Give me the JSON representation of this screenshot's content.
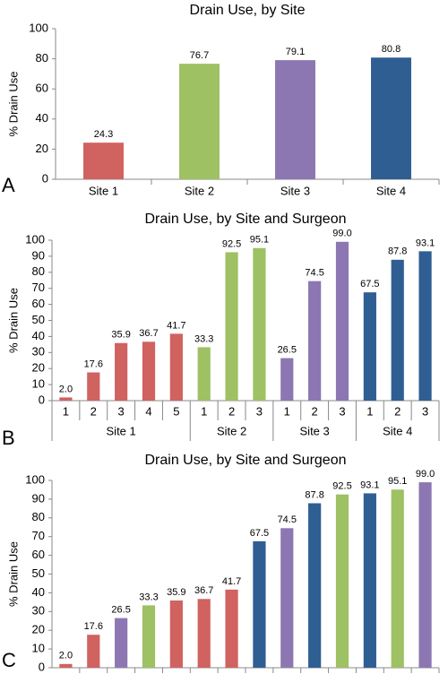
{
  "chart_data": [
    {
      "type": "bar",
      "panel_label": "A",
      "title": "Drain Use, by Site",
      "ylabel": "% Drain Use",
      "categories": [
        "Site 1",
        "Site 2",
        "Site 3",
        "Site 4"
      ],
      "values": [
        24.3,
        76.7,
        79.1,
        80.8
      ],
      "value_labels": [
        "24.3",
        "76.7",
        "79.1",
        "80.8"
      ],
      "colors": [
        "#d0625f",
        "#9dc163",
        "#8c77b3",
        "#2f5e93"
      ],
      "ylim": [
        0,
        100
      ],
      "yticks": [
        0,
        20,
        40,
        60,
        80,
        100
      ]
    },
    {
      "type": "bar",
      "panel_label": "B",
      "title": "Drain Use, by Site and Surgeon",
      "ylabel": "% Drain Use",
      "groups": [
        {
          "name": "Site 1",
          "color": "#d0625f",
          "categories": [
            "1",
            "2",
            "3",
            "4",
            "5"
          ]
        },
        {
          "name": "Site 2",
          "color": "#9dc163",
          "categories": [
            "1",
            "2",
            "3"
          ]
        },
        {
          "name": "Site 3",
          "color": "#8c77b3",
          "categories": [
            "1",
            "2",
            "3"
          ]
        },
        {
          "name": "Site 4",
          "color": "#2f5e93",
          "categories": [
            "1",
            "2",
            "3"
          ]
        }
      ],
      "values": [
        2.0,
        17.6,
        35.9,
        36.7,
        41.7,
        33.3,
        92.5,
        95.1,
        26.5,
        74.5,
        99.0,
        67.5,
        87.8,
        93.1
      ],
      "value_labels": [
        "2.0",
        "17.6",
        "35.9",
        "36.7",
        "41.7",
        "33.3",
        "92.5",
        "95.1",
        "26.5",
        "74.5",
        "99.0",
        "67.5",
        "87.8",
        "93.1"
      ],
      "ylim": [
        0,
        100
      ],
      "yticks": [
        0,
        10,
        20,
        30,
        40,
        50,
        60,
        70,
        80,
        90,
        100
      ]
    },
    {
      "type": "bar",
      "panel_label": "C",
      "title": "Drain Use, by Site and Surgeon",
      "ylabel": "% Drain Use",
      "categories": [
        null,
        null,
        null,
        null,
        null,
        null,
        null,
        null,
        null,
        null,
        null,
        null,
        null,
        null
      ],
      "values": [
        2.0,
        17.6,
        26.5,
        33.3,
        35.9,
        36.7,
        41.7,
        67.5,
        74.5,
        87.8,
        92.5,
        93.1,
        95.1,
        99.0
      ],
      "value_labels": [
        "2.0",
        "17.6",
        "26.5",
        "33.3",
        "35.9",
        "36.7",
        "41.7",
        "67.5",
        "74.5",
        "87.8",
        "92.5",
        "93.1",
        "95.1",
        "99.0"
      ],
      "colors": [
        "#d0625f",
        "#d0625f",
        "#8c77b3",
        "#9dc163",
        "#d0625f",
        "#d0625f",
        "#d0625f",
        "#2f5e93",
        "#8c77b3",
        "#2f5e93",
        "#9dc163",
        "#2f5e93",
        "#9dc163",
        "#8c77b3"
      ],
      "ylim": [
        0,
        100
      ],
      "yticks": [
        0,
        10,
        20,
        30,
        40,
        50,
        60,
        70,
        80,
        90,
        100
      ]
    }
  ]
}
